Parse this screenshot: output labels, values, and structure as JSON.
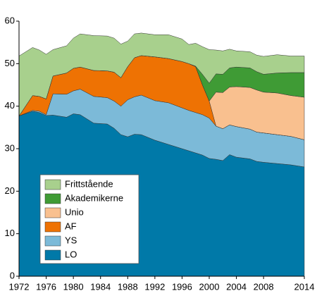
{
  "chart_data": {
    "type": "stacked_area",
    "x": [
      1972,
      1974,
      1975,
      1976,
      1977,
      1979,
      1980,
      1981,
      1983,
      1985,
      1986,
      1987,
      1988,
      1989,
      1990,
      1992,
      1994,
      1996,
      1997,
      1998,
      1999,
      2000,
      2001,
      2002,
      2003,
      2004,
      2006,
      2007,
      2008,
      2010,
      2012,
      2014
    ],
    "series": [
      {
        "name": "LO",
        "color": "#0079a8",
        "values": [
          37.7,
          38.8,
          38.5,
          37.8,
          37.9,
          37.4,
          38.2,
          38.0,
          36.0,
          35.8,
          34.8,
          33.3,
          32.8,
          33.4,
          33.3,
          32.0,
          31.0,
          30.0,
          29.5,
          29.0,
          28.5,
          27.7,
          27.5,
          27.2,
          28.6,
          28.0,
          27.6,
          27.0,
          26.8,
          26.5,
          26.2,
          25.7
        ]
      },
      {
        "name": "YS",
        "color": "#7cbad8",
        "values": [
          0,
          0.2,
          0.3,
          0.2,
          5.0,
          5.4,
          5.4,
          6.0,
          6.3,
          6.2,
          6.4,
          6.7,
          8.7,
          8.8,
          9.3,
          9.3,
          9.8,
          9.6,
          9.5,
          9.5,
          9.5,
          9.5,
          7.8,
          7.5,
          7.0,
          7.2,
          7.0,
          6.9,
          6.9,
          6.8,
          6.7,
          6.4
        ]
      },
      {
        "name": "AF",
        "color": "#ee7203",
        "values": [
          0,
          3.5,
          3.5,
          3.7,
          4.2,
          5.0,
          5.3,
          5.2,
          6.1,
          6.3,
          6.8,
          6.7,
          7.8,
          9.2,
          9.3,
          10.3,
          10.4,
          10.9,
          11.0,
          10.8,
          7.0,
          4.0,
          0,
          0,
          0,
          0,
          0,
          0,
          0,
          0,
          0,
          0
        ]
      },
      {
        "name": "Unio",
        "color": "#f9c08f",
        "values": [
          0,
          0,
          0,
          0,
          0,
          0,
          0,
          0,
          0,
          0,
          0,
          0,
          0,
          0,
          0,
          0,
          0,
          0,
          0,
          0,
          0,
          0,
          8.0,
          8.5,
          8.9,
          9.4,
          9.8,
          9.9,
          9.6,
          9.8,
          9.6,
          10.0
        ]
      },
      {
        "name": "Akademikerne",
        "color": "#3f9b35",
        "values": [
          0,
          0,
          0,
          0,
          0,
          0,
          0,
          0,
          0,
          0,
          0,
          0,
          0,
          0,
          0,
          0,
          0,
          0,
          0,
          0.1,
          2.5,
          4.2,
          4.3,
          4.3,
          4.5,
          4.6,
          4.6,
          4.3,
          4.2,
          4.7,
          5.4,
          5.8
        ]
      },
      {
        "name": "Frittstående",
        "color": "#a8d08d",
        "values": [
          14.1,
          11.3,
          10.9,
          10.5,
          6.2,
          6.4,
          7.1,
          7.8,
          8.2,
          8.2,
          8.0,
          7.9,
          6.0,
          5.6,
          5.3,
          5.2,
          5.6,
          5.3,
          4.5,
          5.4,
          6.5,
          7.9,
          5.6,
          5.5,
          4.4,
          3.8,
          3.8,
          3.9,
          4.2,
          4.3,
          3.9,
          3.9
        ]
      }
    ],
    "xlim": [
      1972,
      2014
    ],
    "xticks": [
      1972,
      1976,
      1980,
      1984,
      1988,
      1992,
      1996,
      2000,
      2004,
      2008,
      2014
    ],
    "ylim": [
      0,
      60
    ],
    "yticks": [
      0,
      10,
      20,
      30,
      40,
      50,
      60
    ],
    "legend": "lower left"
  }
}
